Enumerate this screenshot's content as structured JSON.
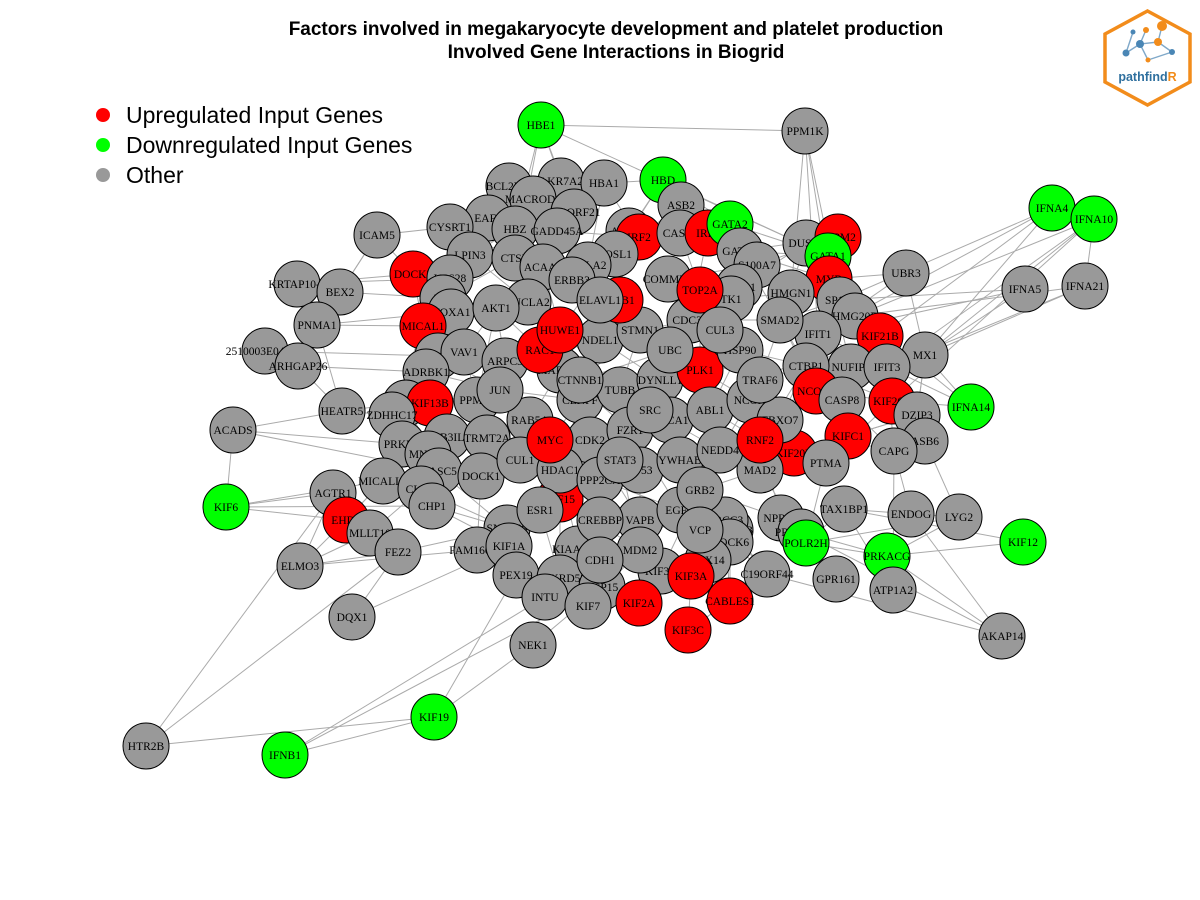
{
  "title": {
    "line1": "Factors involved in megakaryocyte development and platelet production",
    "line2": "Involved Gene Interactions in Biogrid"
  },
  "legend": [
    {
      "label": "Upregulated Input Genes",
      "color": "#ff0000"
    },
    {
      "label": "Downregulated Input Genes",
      "color": "#00ff00"
    },
    {
      "label": "Other",
      "color": "#999999"
    }
  ],
  "logo": {
    "text_main": "pathfind",
    "text_accent": "R",
    "border_color": "#f28c1b",
    "accent_color": "#f28c1b"
  },
  "colors": {
    "up": "#ff0000",
    "down": "#00ff00",
    "other": "#999999",
    "edge": "#aaaaaa"
  },
  "nodes": [
    {
      "id": "HBE1",
      "type": "down"
    },
    {
      "id": "PPM1K",
      "type": "other"
    },
    {
      "id": "HBD",
      "type": "down"
    },
    {
      "id": "BCL2L14",
      "type": "other"
    },
    {
      "id": "AKR7A2",
      "type": "other"
    },
    {
      "id": "HBA1",
      "type": "other"
    },
    {
      "id": "MACROD1",
      "type": "other"
    },
    {
      "id": "EAF2",
      "type": "other"
    },
    {
      "id": "C18ORF21",
      "type": "other"
    },
    {
      "id": "ASB2",
      "type": "other"
    },
    {
      "id": "ICAM5",
      "type": "other"
    },
    {
      "id": "CYSRT1",
      "type": "other"
    },
    {
      "id": "HBZ",
      "type": "other"
    },
    {
      "id": "GADD45A",
      "type": "other"
    },
    {
      "id": "ACTN2",
      "type": "other"
    },
    {
      "id": "IRF2",
      "type": "up"
    },
    {
      "id": "CASS4",
      "type": "other"
    },
    {
      "id": "IRF1",
      "type": "up"
    },
    {
      "id": "GATA2",
      "type": "down"
    },
    {
      "id": "DUSP4",
      "type": "other"
    },
    {
      "id": "ZFPM2",
      "type": "up"
    },
    {
      "id": "GATA1",
      "type": "down"
    },
    {
      "id": "IFNA4",
      "type": "down"
    },
    {
      "id": "IFNA10",
      "type": "down"
    },
    {
      "id": "LPIN3",
      "type": "other"
    },
    {
      "id": "CTSB",
      "type": "other"
    },
    {
      "id": "FOSL1",
      "type": "other"
    },
    {
      "id": "GATA3",
      "type": "other"
    },
    {
      "id": "S100A7",
      "type": "other"
    },
    {
      "id": "MYB",
      "type": "up"
    },
    {
      "id": "UBR3",
      "type": "other"
    },
    {
      "id": "KRTAP10-8",
      "type": "other"
    },
    {
      "id": "DOCK2",
      "type": "up"
    },
    {
      "id": "VPS28",
      "type": "other"
    },
    {
      "id": "ACAA2",
      "type": "other"
    },
    {
      "id": "BOLA2",
      "type": "other"
    },
    {
      "id": "COMMD1",
      "type": "other"
    },
    {
      "id": "SPDL1",
      "type": "other"
    },
    {
      "id": "HMGN1",
      "type": "other"
    },
    {
      "id": "SP100",
      "type": "other"
    },
    {
      "id": "IFNA5",
      "type": "other"
    },
    {
      "id": "IFNA21",
      "type": "other"
    },
    {
      "id": "BEX2",
      "type": "other"
    },
    {
      "id": "ALK",
      "type": "other"
    },
    {
      "id": "SUCLA2",
      "type": "other"
    },
    {
      "id": "ERBB3",
      "type": "other"
    },
    {
      "id": "TK1",
      "type": "other"
    },
    {
      "id": "HMG20B",
      "type": "other"
    },
    {
      "id": "PNMA1",
      "type": "other"
    },
    {
      "id": "HOXA1",
      "type": "other"
    },
    {
      "id": "AKT1",
      "type": "other"
    },
    {
      "id": "MICAL1",
      "type": "up"
    },
    {
      "id": "IFIT1",
      "type": "other"
    },
    {
      "id": "KIF21B",
      "type": "up"
    },
    {
      "id": "MX1",
      "type": "other"
    },
    {
      "id": "2510003E04RIK",
      "type": "other"
    },
    {
      "id": "ARHGAP26",
      "type": "other"
    },
    {
      "id": "ARL6IP1",
      "type": "other"
    },
    {
      "id": "VAV1",
      "type": "other"
    },
    {
      "id": "NUFIP1",
      "type": "other"
    },
    {
      "id": "IFIT3",
      "type": "other"
    },
    {
      "id": "ADRBK1",
      "type": "other"
    },
    {
      "id": "ARPC3",
      "type": "other"
    },
    {
      "id": "CTBP1",
      "type": "other"
    },
    {
      "id": "DOCK8",
      "type": "other"
    },
    {
      "id": "KIF13B",
      "type": "up"
    },
    {
      "id": "PPM1F",
      "type": "other"
    },
    {
      "id": "NCOR1",
      "type": "up"
    },
    {
      "id": "CASP8",
      "type": "other"
    },
    {
      "id": "KIF26B",
      "type": "up"
    },
    {
      "id": "DZIP3",
      "type": "other"
    },
    {
      "id": "IFNA14",
      "type": "down"
    },
    {
      "id": "HEATR5",
      "type": "other"
    },
    {
      "id": "ZDHHC17",
      "type": "other"
    },
    {
      "id": "ACADS",
      "type": "other"
    },
    {
      "id": "PRKD2",
      "type": "other"
    },
    {
      "id": "RAB3IL1",
      "type": "other"
    },
    {
      "id": "TRMT2A",
      "type": "other"
    },
    {
      "id": "KIFC1",
      "type": "up"
    },
    {
      "id": "ASB6",
      "type": "other"
    },
    {
      "id": "CAPG",
      "type": "other"
    },
    {
      "id": "MNAT1",
      "type": "other"
    },
    {
      "id": "KIF20B",
      "type": "up"
    },
    {
      "id": "PTMA",
      "type": "other"
    },
    {
      "id": "CASC5",
      "type": "other"
    },
    {
      "id": "DOCK1",
      "type": "other"
    },
    {
      "id": "MICALL1",
      "type": "other"
    },
    {
      "id": "AGTR1",
      "type": "other"
    },
    {
      "id": "CLIP1",
      "type": "other"
    },
    {
      "id": "KIF6",
      "type": "down"
    },
    {
      "id": "EHD3",
      "type": "up"
    },
    {
      "id": "MLLT10",
      "type": "other"
    },
    {
      "id": "CHP1",
      "type": "other"
    },
    {
      "id": "KIF15",
      "type": "up"
    },
    {
      "id": "PRKACB",
      "type": "other"
    },
    {
      "id": "TAX1BP1",
      "type": "other"
    },
    {
      "id": "ENDOG",
      "type": "other"
    },
    {
      "id": "LYG2",
      "type": "other"
    },
    {
      "id": "KIF12",
      "type": "down"
    },
    {
      "id": "FEZ2",
      "type": "other"
    },
    {
      "id": "SNAP29",
      "type": "other"
    },
    {
      "id": "VAPB",
      "type": "other"
    },
    {
      "id": "BRCC3",
      "type": "other"
    },
    {
      "id": "NPRL2",
      "type": "other"
    },
    {
      "id": "PRKAR2A",
      "type": "other"
    },
    {
      "id": "POLR2H",
      "type": "down"
    },
    {
      "id": "ELMO3",
      "type": "other"
    },
    {
      "id": "FAM160A1",
      "type": "other"
    },
    {
      "id": "KIF1A",
      "type": "other"
    },
    {
      "id": "KIAA1279",
      "type": "other"
    },
    {
      "id": "DOCK6",
      "type": "other"
    },
    {
      "id": "KIF3B",
      "type": "other"
    },
    {
      "id": "PEX14",
      "type": "other"
    },
    {
      "id": "KIF3A",
      "type": "up"
    },
    {
      "id": "C19ORF44",
      "type": "other"
    },
    {
      "id": "PRKACG",
      "type": "down"
    },
    {
      "id": "GPR161",
      "type": "other"
    },
    {
      "id": "ATP1A2",
      "type": "other"
    },
    {
      "id": "PEX19",
      "type": "other"
    },
    {
      "id": "ANKRD52",
      "type": "other"
    },
    {
      "id": "NSP15",
      "type": "other"
    },
    {
      "id": "KIF2A",
      "type": "up"
    },
    {
      "id": "CABLES1",
      "type": "up"
    },
    {
      "id": "DQX1",
      "type": "other"
    },
    {
      "id": "INTU",
      "type": "other"
    },
    {
      "id": "KIF7",
      "type": "other"
    },
    {
      "id": "KIF3C",
      "type": "up"
    },
    {
      "id": "AKAP14",
      "type": "other"
    },
    {
      "id": "NEK1",
      "type": "other"
    },
    {
      "id": "KIF19",
      "type": "down"
    },
    {
      "id": "HTR2B",
      "type": "other"
    },
    {
      "id": "IFNB1",
      "type": "down"
    },
    {
      "id": "MAPRE3",
      "type": "other"
    },
    {
      "id": "NDEL1",
      "type": "other"
    },
    {
      "id": "STMN1",
      "type": "other"
    },
    {
      "id": "CDC37",
      "type": "other"
    },
    {
      "id": "RAB5A",
      "type": "other"
    },
    {
      "id": "CENPF",
      "type": "other"
    },
    {
      "id": "TUBB",
      "type": "other"
    },
    {
      "id": "DYNLL1",
      "type": "other"
    },
    {
      "id": "PLK1",
      "type": "up"
    },
    {
      "id": "HSP90",
      "type": "other"
    },
    {
      "id": "RAC1",
      "type": "up"
    },
    {
      "id": "CDK2",
      "type": "other"
    },
    {
      "id": "FZR1",
      "type": "other"
    },
    {
      "id": "BRCA1",
      "type": "other"
    },
    {
      "id": "HUWE1",
      "type": "up"
    },
    {
      "id": "ABL1",
      "type": "other"
    },
    {
      "id": "NCOA",
      "type": "other"
    },
    {
      "id": "FBXO7",
      "type": "other"
    },
    {
      "id": "CUL1",
      "type": "other"
    },
    {
      "id": "HDAC1",
      "type": "other"
    },
    {
      "id": "PPP2CA",
      "type": "other"
    },
    {
      "id": "TP53",
      "type": "other"
    },
    {
      "id": "YWHAB",
      "type": "other"
    },
    {
      "id": "MAD2",
      "type": "other"
    },
    {
      "id": "NEDD4",
      "type": "other"
    },
    {
      "id": "ESR1",
      "type": "other"
    },
    {
      "id": "CREBBP",
      "type": "other"
    },
    {
      "id": "BUB1",
      "type": "up"
    },
    {
      "id": "TOP2A",
      "type": "up"
    },
    {
      "id": "SMAD2",
      "type": "other"
    },
    {
      "id": "TRAF6",
      "type": "other"
    },
    {
      "id": "MDM2",
      "type": "other"
    },
    {
      "id": "EGFR",
      "type": "other"
    },
    {
      "id": "GRB2",
      "type": "other"
    },
    {
      "id": "CTNNB1",
      "type": "other"
    },
    {
      "id": "JUN",
      "type": "other"
    },
    {
      "id": "SRC",
      "type": "other"
    },
    {
      "id": "STAT3",
      "type": "other"
    },
    {
      "id": "UBC",
      "type": "other"
    },
    {
      "id": "ELAVL1",
      "type": "other"
    },
    {
      "id": "CUL3",
      "type": "other"
    },
    {
      "id": "RNF2",
      "type": "up"
    },
    {
      "id": "CDH1",
      "type": "other"
    },
    {
      "id": "MYC",
      "type": "up"
    },
    {
      "id": "VCP",
      "type": "other"
    }
  ],
  "edges": [
    [
      "HBE1",
      "GATA1"
    ],
    [
      "HBE1",
      "HBZ"
    ],
    [
      "HBE1",
      "PPM1K"
    ],
    [
      "HBD",
      "GATA1"
    ],
    [
      "HBD",
      "HBA1"
    ],
    [
      "PPM1K",
      "IFIT1"
    ],
    [
      "PPM1K",
      "SP100"
    ],
    [
      "PPM1K",
      "HMGN1"
    ],
    [
      "IFNA4",
      "MX1"
    ],
    [
      "IFNA4",
      "IFIT1"
    ],
    [
      "IFNA4",
      "SP100"
    ],
    [
      "IFNA10",
      "MX1"
    ],
    [
      "IFNA10",
      "IFIT3"
    ],
    [
      "IFNA10",
      "HMG20B"
    ],
    [
      "IFNA5",
      "MX1"
    ],
    [
      "IFNA5",
      "IFIT1"
    ],
    [
      "IFNA21",
      "MX1"
    ],
    [
      "IFNA21",
      "IFIT3"
    ],
    [
      "IFNA14",
      "MX1"
    ],
    [
      "IFNA14",
      "IFIT1"
    ],
    [
      "IFNA14",
      "SP100"
    ],
    [
      "UBR3",
      "MYB"
    ],
    [
      "GATA2",
      "GATA1"
    ],
    [
      "ZFPM2",
      "GATA1"
    ],
    [
      "ZFPM2",
      "GATA3"
    ],
    [
      "IRF1",
      "IRF2"
    ],
    [
      "IRF2",
      "CASS4"
    ],
    [
      "DUSP4",
      "MYB"
    ],
    [
      "KRTAP10-8",
      "BEX2"
    ],
    [
      "KRTAP10-8",
      "PNMA1"
    ],
    [
      "KRTAP10-8",
      "DOCK2"
    ],
    [
      "ICAM5",
      "CYSRT1"
    ],
    [
      "ICAM5",
      "BEX2"
    ],
    [
      "BEX2",
      "ALK"
    ],
    [
      "PNMA1",
      "HOXA1"
    ],
    [
      "PNMA1",
      "MICAL1"
    ],
    [
      "2510003E04RIK",
      "ARHGAP26"
    ],
    [
      "ARHGAP26",
      "ADRBK1"
    ],
    [
      "ACADS",
      "HEATR5"
    ],
    [
      "ACADS",
      "KIF6"
    ],
    [
      "ACADS",
      "PRKD2"
    ],
    [
      "KIF6",
      "AGTR1"
    ],
    [
      "KIF6",
      "EHD3"
    ],
    [
      "KIF6",
      "MICALL1"
    ],
    [
      "AGTR1",
      "ELMO3"
    ],
    [
      "ELMO3",
      "FEZ2"
    ],
    [
      "ELMO3",
      "MLLT10"
    ],
    [
      "HTR2B",
      "KIF19"
    ],
    [
      "HTR2B",
      "AGTR1"
    ],
    [
      "IFNB1",
      "KIF19"
    ],
    [
      "IFNB1",
      "INTU"
    ],
    [
      "KIF19",
      "NEK1"
    ],
    [
      "KIF19",
      "PEX19"
    ],
    [
      "DQX1",
      "FEZ2"
    ],
    [
      "NEK1",
      "INTU"
    ],
    [
      "AKAP14",
      "PRKACG"
    ],
    [
      "AKAP14",
      "PRKAR2A"
    ],
    [
      "AKAP14",
      "ENDOG"
    ],
    [
      "LYG2",
      "ENDOG"
    ],
    [
      "KIF12",
      "PRKACG"
    ],
    [
      "KIF12",
      "TAX1BP1"
    ],
    [
      "PRKACG",
      "PRKAR2A"
    ],
    [
      "ATP1A2",
      "PRKACG"
    ],
    [
      "ATP1A2",
      "CAPG"
    ],
    [
      "GPR161",
      "PRKAR2A"
    ],
    [
      "MX1",
      "IFIT3"
    ],
    [
      "MX1",
      "DZIP3"
    ],
    [
      "KIF21B",
      "KIF26B"
    ],
    [
      "CAPG",
      "ASB6"
    ],
    [
      "HBE1",
      "CTSB"
    ],
    [
      "ICAM5",
      "DOCK2"
    ],
    [
      "DOCK2",
      "MICAL1"
    ],
    [
      "MICAL1",
      "VAV1"
    ],
    [
      "HEATR5",
      "ZDHHC17"
    ],
    [
      "KIF13B",
      "PPM1F"
    ],
    [
      "KIF3C",
      "KIF3A"
    ],
    [
      "KIF3C",
      "CABLES1"
    ],
    [
      "KIF3A",
      "KIF3B"
    ],
    [
      "KIF2A",
      "KIF7"
    ],
    [
      "KIF15",
      "KIF1A"
    ],
    [
      "MLLT10",
      "CLIP1"
    ],
    [
      "EHD3",
      "MICALL1"
    ],
    [
      "FEZ2",
      "SNAP29"
    ],
    [
      "ENDOG",
      "TAX1BP1"
    ],
    [
      "PPM1K",
      "MYB"
    ],
    [
      "UBR3",
      "IFIT1"
    ],
    [
      "IFNA5",
      "SP100"
    ],
    [
      "IFNA21",
      "HMG20B"
    ],
    [
      "IFNA4",
      "KIF21B"
    ],
    [
      "IFNA10",
      "KIF26B"
    ],
    [
      "DZIP3",
      "KIFC1"
    ],
    [
      "ASB6",
      "KIF20B"
    ],
    [
      "AKAP14",
      "C19ORF44"
    ],
    [
      "LYG2",
      "POLR2H"
    ],
    [
      "ACADS",
      "CASC5"
    ],
    [
      "2510003E04RIK",
      "ARL6IP1"
    ],
    [
      "KRTAP10-8",
      "VPS28"
    ],
    [
      "HTR2B",
      "FEZ2"
    ],
    [
      "IFNB1",
      "NSP15"
    ],
    [
      "DQX1",
      "KIF1A"
    ],
    [
      "ELMO3",
      "FAM160A1"
    ],
    [
      "KIF6",
      "CHP1"
    ]
  ]
}
